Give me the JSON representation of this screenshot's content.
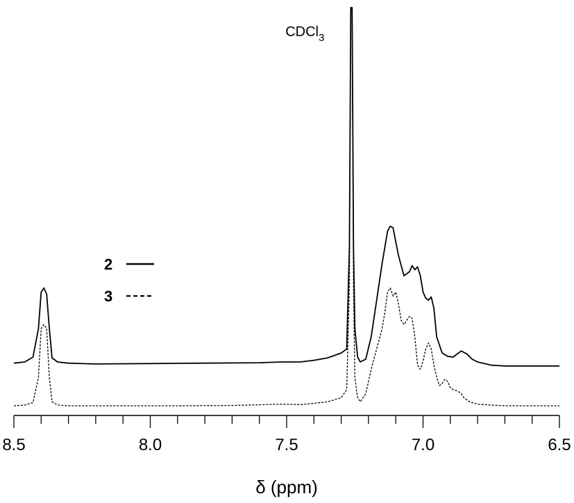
{
  "chart_data": {
    "type": "line",
    "title": "",
    "xlabel": "δ (ppm)",
    "ylabel": "",
    "xlim": [
      8.5,
      6.5
    ],
    "x_reversed": true,
    "ylim": [
      0,
      1.0
    ],
    "grid": false,
    "legend_position": "left",
    "ticks": {
      "major": [
        8.5,
        8.0,
        7.5,
        7.0,
        6.5
      ],
      "major_labels": [
        "8.5",
        "8.0",
        "7.5",
        "7.0",
        "6.5"
      ],
      "minor_step": 0.1
    },
    "annotations": [
      {
        "text": "CDCl",
        "subscript": "3",
        "x": 7.26
      }
    ],
    "series": [
      {
        "name": "2",
        "style": "solid",
        "color": "#000000",
        "points": [
          [
            8.5,
            0.115
          ],
          [
            8.46,
            0.118
          ],
          [
            8.43,
            0.13
          ],
          [
            8.41,
            0.2
          ],
          [
            8.4,
            0.29
          ],
          [
            8.39,
            0.3
          ],
          [
            8.38,
            0.285
          ],
          [
            8.37,
            0.2
          ],
          [
            8.36,
            0.128
          ],
          [
            8.34,
            0.118
          ],
          [
            8.3,
            0.115
          ],
          [
            8.2,
            0.113
          ],
          [
            8.0,
            0.114
          ],
          [
            7.8,
            0.115
          ],
          [
            7.6,
            0.116
          ],
          [
            7.52,
            0.118
          ],
          [
            7.45,
            0.118
          ],
          [
            7.4,
            0.122
          ],
          [
            7.35,
            0.128
          ],
          [
            7.3,
            0.14
          ],
          [
            7.28,
            0.15
          ],
          [
            7.27,
            0.4
          ],
          [
            7.265,
            0.99
          ],
          [
            7.26,
            0.99
          ],
          [
            7.255,
            0.4
          ],
          [
            7.25,
            0.2
          ],
          [
            7.24,
            0.13
          ],
          [
            7.23,
            0.118
          ],
          [
            7.21,
            0.125
          ],
          [
            7.19,
            0.18
          ],
          [
            7.17,
            0.27
          ],
          [
            7.15,
            0.36
          ],
          [
            7.13,
            0.44
          ],
          [
            7.12,
            0.452
          ],
          [
            7.11,
            0.448
          ],
          [
            7.09,
            0.38
          ],
          [
            7.07,
            0.33
          ],
          [
            7.05,
            0.34
          ],
          [
            7.04,
            0.355
          ],
          [
            7.03,
            0.345
          ],
          [
            7.02,
            0.352
          ],
          [
            7.01,
            0.33
          ],
          [
            7.0,
            0.29
          ],
          [
            6.99,
            0.275
          ],
          [
            6.98,
            0.27
          ],
          [
            6.97,
            0.278
          ],
          [
            6.96,
            0.25
          ],
          [
            6.95,
            0.18
          ],
          [
            6.93,
            0.14
          ],
          [
            6.91,
            0.132
          ],
          [
            6.89,
            0.13
          ],
          [
            6.87,
            0.14
          ],
          [
            6.86,
            0.145
          ],
          [
            6.84,
            0.138
          ],
          [
            6.82,
            0.125
          ],
          [
            6.8,
            0.118
          ],
          [
            6.75,
            0.11
          ],
          [
            6.7,
            0.108
          ],
          [
            6.6,
            0.108
          ],
          [
            6.5,
            0.108
          ]
        ]
      },
      {
        "name": "3",
        "style": "dashed",
        "color": "#000000",
        "points": [
          [
            8.5,
            0.01
          ],
          [
            8.46,
            0.012
          ],
          [
            8.43,
            0.018
          ],
          [
            8.41,
            0.08
          ],
          [
            8.4,
            0.2
          ],
          [
            8.39,
            0.21
          ],
          [
            8.38,
            0.2
          ],
          [
            8.37,
            0.08
          ],
          [
            8.36,
            0.02
          ],
          [
            8.34,
            0.012
          ],
          [
            8.3,
            0.01
          ],
          [
            8.1,
            0.01
          ],
          [
            7.9,
            0.01
          ],
          [
            7.7,
            0.011
          ],
          [
            7.52,
            0.014
          ],
          [
            7.45,
            0.013
          ],
          [
            7.4,
            0.016
          ],
          [
            7.35,
            0.02
          ],
          [
            7.3,
            0.03
          ],
          [
            7.28,
            0.05
          ],
          [
            7.27,
            0.3
          ],
          [
            7.265,
            0.99
          ],
          [
            7.26,
            0.99
          ],
          [
            7.255,
            0.3
          ],
          [
            7.25,
            0.08
          ],
          [
            7.24,
            0.03
          ],
          [
            7.23,
            0.02
          ],
          [
            7.21,
            0.04
          ],
          [
            7.19,
            0.1
          ],
          [
            7.17,
            0.15
          ],
          [
            7.15,
            0.2
          ],
          [
            7.14,
            0.24
          ],
          [
            7.13,
            0.29
          ],
          [
            7.12,
            0.3
          ],
          [
            7.11,
            0.28
          ],
          [
            7.1,
            0.29
          ],
          [
            7.09,
            0.26
          ],
          [
            7.08,
            0.22
          ],
          [
            7.07,
            0.21
          ],
          [
            7.06,
            0.22
          ],
          [
            7.05,
            0.23
          ],
          [
            7.04,
            0.225
          ],
          [
            7.03,
            0.18
          ],
          [
            7.02,
            0.11
          ],
          [
            7.01,
            0.1
          ],
          [
            7.0,
            0.12
          ],
          [
            6.99,
            0.15
          ],
          [
            6.98,
            0.165
          ],
          [
            6.97,
            0.15
          ],
          [
            6.96,
            0.11
          ],
          [
            6.95,
            0.08
          ],
          [
            6.94,
            0.06
          ],
          [
            6.93,
            0.065
          ],
          [
            6.92,
            0.075
          ],
          [
            6.91,
            0.07
          ],
          [
            6.9,
            0.055
          ],
          [
            6.89,
            0.05
          ],
          [
            6.88,
            0.048
          ],
          [
            6.87,
            0.045
          ],
          [
            6.86,
            0.04
          ],
          [
            6.85,
            0.03
          ],
          [
            6.83,
            0.02
          ],
          [
            6.8,
            0.014
          ],
          [
            6.75,
            0.012
          ],
          [
            6.7,
            0.01
          ],
          [
            6.6,
            0.01
          ],
          [
            6.5,
            0.01
          ]
        ]
      }
    ]
  }
}
